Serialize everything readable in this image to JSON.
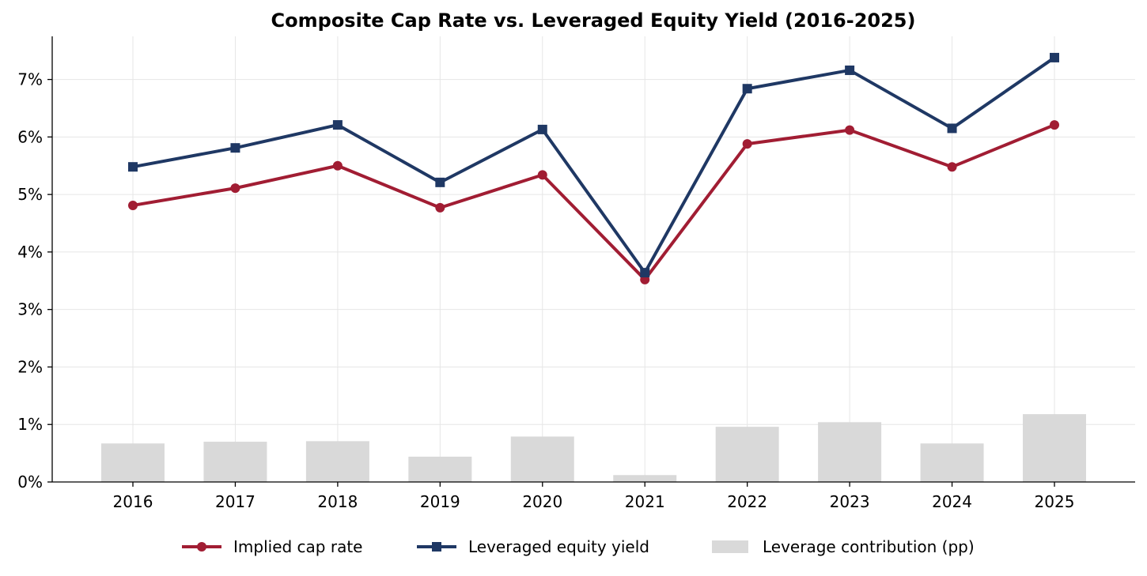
{
  "chart_data": {
    "type": "line",
    "title": "Composite Cap Rate vs. Leveraged Equity Yield (2016-2025)",
    "xlabel": "",
    "ylabel": "",
    "categories": [
      "2016",
      "2017",
      "2018",
      "2019",
      "2020",
      "2021",
      "2022",
      "2023",
      "2024",
      "2025"
    ],
    "ylim": [
      0,
      7.75
    ],
    "yticks": [
      0,
      1,
      2,
      3,
      4,
      5,
      6,
      7
    ],
    "ytick_labels": [
      "0%",
      "1%",
      "2%",
      "3%",
      "4%",
      "5%",
      "6%",
      "7%"
    ],
    "grid": true,
    "legend_position": "bottom-center",
    "series": [
      {
        "name": "Implied cap rate",
        "kind": "line",
        "marker": "circle",
        "color": "#a11d33",
        "values": [
          4.81,
          5.11,
          5.5,
          4.77,
          5.34,
          3.52,
          5.88,
          6.12,
          5.48,
          6.21
        ]
      },
      {
        "name": "Leveraged equity yield",
        "kind": "line",
        "marker": "square",
        "color": "#1f3864",
        "values": [
          5.48,
          5.81,
          6.21,
          5.21,
          6.13,
          3.64,
          6.84,
          7.16,
          6.15,
          7.38
        ]
      },
      {
        "name": "Leverage contribution (pp)",
        "kind": "bar",
        "color": "#d9d9d9",
        "values": [
          0.67,
          0.7,
          0.71,
          0.44,
          0.79,
          0.12,
          0.96,
          1.04,
          0.67,
          1.18
        ]
      }
    ]
  }
}
